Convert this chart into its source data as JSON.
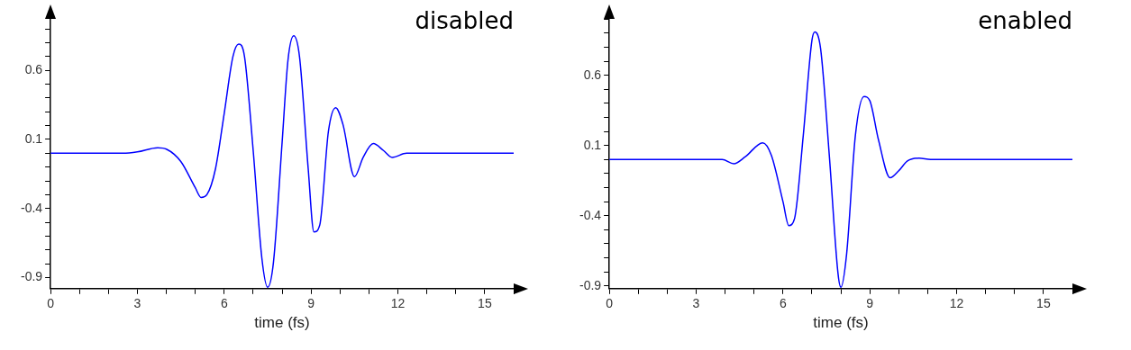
{
  "chart_data": [
    {
      "type": "line",
      "title": "disabled",
      "xlabel": "time (fs)",
      "xlim": [
        0,
        16
      ],
      "ylim": [
        -0.98,
        0.97
      ],
      "grid": false,
      "legend": false,
      "marker": "none",
      "line_style": "solid",
      "xticks": [
        0,
        {
          "value": 1,
          "label": null
        },
        {
          "value": 2,
          "label": null
        },
        3,
        {
          "value": 4,
          "label": null
        },
        {
          "value": 5,
          "label": null
        },
        6,
        {
          "value": 7,
          "label": null
        },
        {
          "value": 8,
          "label": null
        },
        9,
        {
          "value": 10,
          "label": null
        },
        {
          "value": 11,
          "label": null
        },
        12,
        {
          "value": 13,
          "label": null
        },
        {
          "value": 14,
          "label": null
        },
        15,
        {
          "value": 16,
          "label": null
        }
      ],
      "yticks": [
        {
          "value": -0.9,
          "label": "-0.9"
        },
        {
          "value": -0.8,
          "label": null
        },
        {
          "value": -0.7,
          "label": null
        },
        {
          "value": -0.6,
          "label": null
        },
        {
          "value": -0.5,
          "label": null
        },
        {
          "value": -0.4,
          "label": "-0.4"
        },
        {
          "value": -0.3,
          "label": null
        },
        {
          "value": -0.2,
          "label": null
        },
        {
          "value": -0.1,
          "label": null
        },
        {
          "value": 0,
          "label": null
        },
        {
          "value": 0.1,
          "label": "0.1"
        },
        {
          "value": 0.2,
          "label": null
        },
        {
          "value": 0.3,
          "label": null
        },
        {
          "value": 0.4,
          "label": null
        },
        {
          "value": 0.5,
          "label": null
        },
        {
          "value": 0.6,
          "label": "0.6"
        },
        {
          "value": 0.7,
          "label": null
        },
        {
          "value": 0.8,
          "label": null
        },
        {
          "value": 0.9,
          "label": null
        }
      ],
      "x": [
        0,
        2.5,
        3.0,
        3.7,
        4.0,
        4.5,
        5.0,
        5.2,
        5.4,
        5.7,
        6.0,
        6.3,
        6.5,
        6.7,
        7.0,
        7.3,
        7.5,
        7.7,
        8.0,
        8.2,
        8.4,
        8.6,
        8.9,
        9.1,
        9.3,
        9.6,
        9.85,
        10.1,
        10.5,
        10.8,
        11.15,
        11.5,
        11.8,
        12.3,
        12.8,
        16
      ],
      "series": [
        {
          "color": "#0000ff",
          "values": [
            0,
            0,
            0.01,
            0.04,
            0.03,
            -0.06,
            -0.25,
            -0.32,
            -0.3,
            -0.11,
            0.29,
            0.7,
            0.79,
            0.7,
            0.02,
            -0.76,
            -0.97,
            -0.79,
            0.08,
            0.67,
            0.85,
            0.7,
            -0.11,
            -0.57,
            -0.52,
            0.16,
            0.33,
            0.21,
            -0.17,
            -0.03,
            0.07,
            0.02,
            -0.03,
            0,
            0,
            0
          ]
        }
      ]
    },
    {
      "type": "line",
      "title": "enabled",
      "xlabel": "time (fs)",
      "xlim": [
        0,
        16
      ],
      "ylim": [
        -0.92,
        1.0
      ],
      "grid": false,
      "legend": false,
      "marker": "none",
      "line_style": "solid",
      "xticks": [
        0,
        {
          "value": 1,
          "label": null
        },
        {
          "value": 2,
          "label": null
        },
        3,
        {
          "value": 4,
          "label": null
        },
        {
          "value": 5,
          "label": null
        },
        6,
        {
          "value": 7,
          "label": null
        },
        {
          "value": 8,
          "label": null
        },
        9,
        {
          "value": 10,
          "label": null
        },
        {
          "value": 11,
          "label": null
        },
        12,
        {
          "value": 13,
          "label": null
        },
        {
          "value": 14,
          "label": null
        },
        15,
        {
          "value": 16,
          "label": null
        }
      ],
      "yticks": [
        {
          "value": -0.9,
          "label": "-0.9"
        },
        {
          "value": -0.8,
          "label": null
        },
        {
          "value": -0.7,
          "label": null
        },
        {
          "value": -0.6,
          "label": null
        },
        {
          "value": -0.5,
          "label": null
        },
        {
          "value": -0.4,
          "label": "-0.4"
        },
        {
          "value": -0.3,
          "label": null
        },
        {
          "value": -0.2,
          "label": null
        },
        {
          "value": -0.1,
          "label": null
        },
        {
          "value": 0,
          "label": null
        },
        {
          "value": 0.1,
          "label": "0.1"
        },
        {
          "value": 0.2,
          "label": null
        },
        {
          "value": 0.3,
          "label": null
        },
        {
          "value": 0.4,
          "label": null
        },
        {
          "value": 0.5,
          "label": null
        },
        {
          "value": 0.6,
          "label": "0.6"
        },
        {
          "value": 0.7,
          "label": null
        },
        {
          "value": 0.8,
          "label": null
        },
        {
          "value": 0.9,
          "label": null
        },
        {
          "value": 1.0,
          "label": null
        }
      ],
      "x": [
        0,
        3.9,
        4.3,
        4.7,
        5.3,
        5.6,
        6.0,
        6.2,
        6.4,
        6.7,
        7.0,
        7.1,
        7.3,
        7.6,
        7.9,
        8.0,
        8.2,
        8.5,
        8.8,
        9.0,
        9.3,
        9.7,
        10.0,
        10.3,
        10.7,
        11.1,
        16
      ],
      "series": [
        {
          "color": "#0000ff",
          "values": [
            0,
            0,
            -0.03,
            0.02,
            0.12,
            0.03,
            -0.3,
            -0.47,
            -0.42,
            0.17,
            0.85,
            0.91,
            0.79,
            0.03,
            -0.81,
            -0.91,
            -0.67,
            0.17,
            0.45,
            0.42,
            0.14,
            -0.13,
            -0.08,
            -0.01,
            0.01,
            0,
            0
          ]
        }
      ]
    }
  ]
}
